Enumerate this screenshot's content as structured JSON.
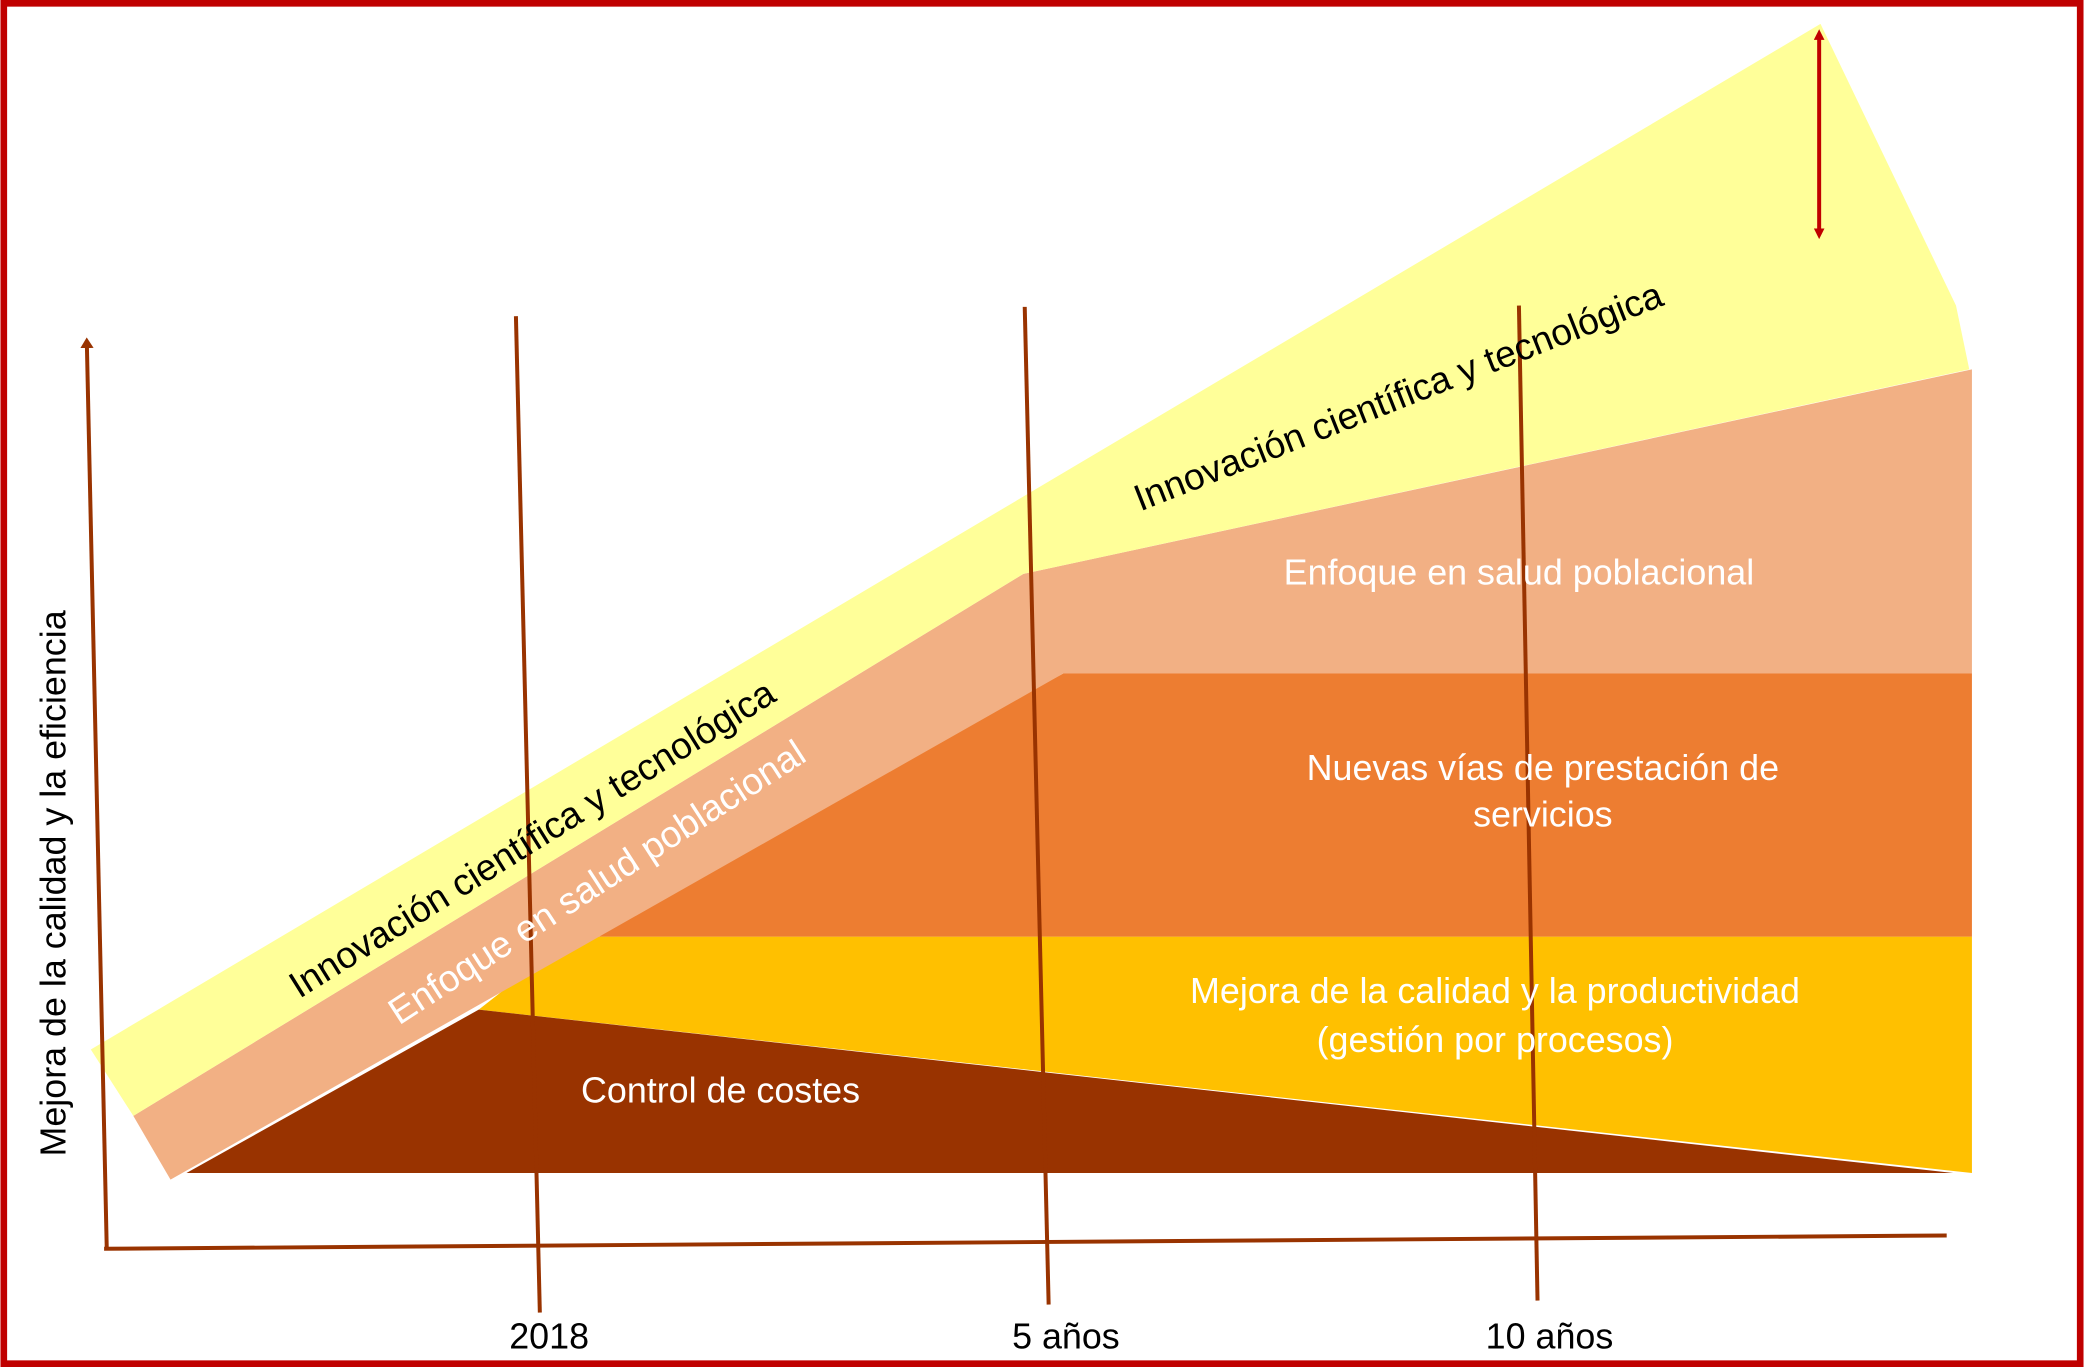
{
  "y_axis_label": "Mejora de la calidad y la eficiencia",
  "x_ticks": [
    "2018",
    "5 años",
    "10 años"
  ],
  "layers": {
    "innovation": {
      "label": "Innovación científica y tecnológica",
      "color": "#ffff99"
    },
    "population_health": {
      "label": "Enfoque en salud poblacional",
      "color": "#f2b084"
    },
    "new_services": {
      "label_line1": "Nuevas vías de prestación de",
      "label_line2": "servicios",
      "color": "#ed7d31"
    },
    "quality": {
      "label_line1": "Mejora de la calidad y la productividad",
      "label_line2": "(gestión por procesos)",
      "color": "#ffc000"
    },
    "cost_control": {
      "label": "Control de costes",
      "color": "#993300"
    }
  },
  "colors": {
    "frame": "#c00000",
    "axis": "#a0400f",
    "arrow": "#c00000"
  }
}
